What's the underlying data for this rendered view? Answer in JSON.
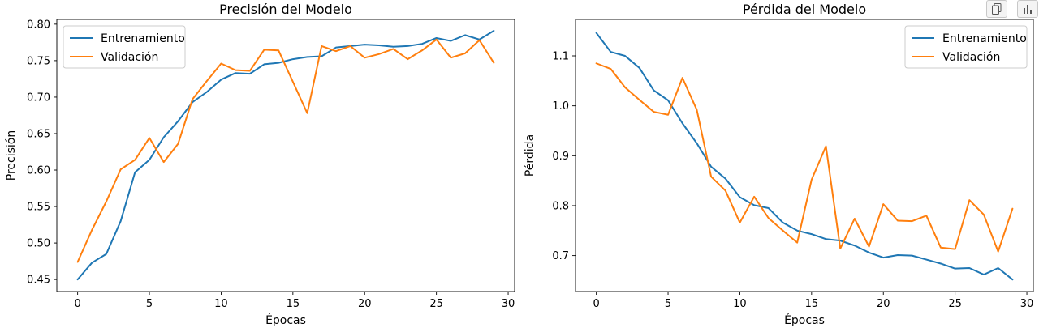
{
  "toolbar": {
    "copy_icon": "copy-icon",
    "chart_icon": "bar-chart-icon"
  },
  "chart_data": [
    {
      "type": "line",
      "title": "Precisión del Modelo",
      "xlabel": "Épocas",
      "ylabel": "Precisión",
      "xlim": [
        -1.45,
        30.45
      ],
      "ylim": [
        0.4335,
        0.8065
      ],
      "xticks": [
        0,
        5,
        10,
        15,
        20,
        25,
        30
      ],
      "yticks": [
        0.45,
        0.5,
        0.55,
        0.6,
        0.65,
        0.7,
        0.75,
        0.8
      ],
      "ytick_labels": [
        "0.45",
        "0.50",
        "0.55",
        "0.60",
        "0.65",
        "0.70",
        "0.75",
        "0.80"
      ],
      "legend_loc": "upper left",
      "x": [
        0,
        1,
        2,
        3,
        4,
        5,
        6,
        7,
        8,
        9,
        10,
        11,
        12,
        13,
        14,
        15,
        16,
        17,
        18,
        19,
        20,
        21,
        22,
        23,
        24,
        25,
        26,
        27,
        28,
        29
      ],
      "series": [
        {
          "name": "Entrenamiento",
          "color": "#1f77b4",
          "values": [
            0.45,
            0.473,
            0.485,
            0.53,
            0.597,
            0.614,
            0.645,
            0.667,
            0.693,
            0.707,
            0.724,
            0.733,
            0.732,
            0.745,
            0.747,
            0.752,
            0.755,
            0.756,
            0.768,
            0.77,
            0.772,
            0.771,
            0.769,
            0.77,
            0.773,
            0.781,
            0.777,
            0.785,
            0.779,
            0.791
          ]
        },
        {
          "name": "Validación",
          "color": "#ff7f0e",
          "values": [
            0.474,
            0.518,
            0.557,
            0.601,
            0.614,
            0.644,
            0.611,
            0.636,
            0.697,
            0.722,
            0.746,
            0.737,
            0.736,
            0.765,
            0.764,
            0.721,
            0.678,
            0.77,
            0.763,
            0.77,
            0.754,
            0.759,
            0.766,
            0.752,
            0.764,
            0.779,
            0.754,
            0.76,
            0.778,
            0.747
          ]
        }
      ]
    },
    {
      "type": "line",
      "title": "Pérdida del Modelo",
      "xlabel": "Épocas",
      "ylabel": "Pérdida",
      "xlim": [
        -1.45,
        30.45
      ],
      "ylim": [
        0.628,
        1.173
      ],
      "xticks": [
        0,
        5,
        10,
        15,
        20,
        25,
        30
      ],
      "yticks": [
        0.7,
        0.8,
        0.9,
        1.0,
        1.1
      ],
      "ytick_labels": [
        "0.7",
        "0.8",
        "0.9",
        "1.0",
        "1.1"
      ],
      "legend_loc": "upper right",
      "x": [
        0,
        1,
        2,
        3,
        4,
        5,
        6,
        7,
        8,
        9,
        10,
        11,
        12,
        13,
        14,
        15,
        16,
        17,
        18,
        19,
        20,
        21,
        22,
        23,
        24,
        25,
        26,
        27,
        28,
        29
      ],
      "series": [
        {
          "name": "Entrenamiento",
          "color": "#1f77b4",
          "values": [
            1.146,
            1.108,
            1.1,
            1.076,
            1.031,
            1.011,
            0.965,
            0.925,
            0.878,
            0.854,
            0.817,
            0.801,
            0.795,
            0.766,
            0.75,
            0.743,
            0.733,
            0.73,
            0.72,
            0.706,
            0.696,
            0.701,
            0.7,
            0.692,
            0.684,
            0.674,
            0.675,
            0.662,
            0.675,
            0.652
          ]
        },
        {
          "name": "Validación",
          "color": "#ff7f0e",
          "values": [
            1.085,
            1.074,
            1.037,
            1.012,
            0.988,
            0.982,
            1.056,
            0.992,
            0.858,
            0.83,
            0.766,
            0.818,
            0.775,
            0.75,
            0.726,
            0.852,
            0.919,
            0.714,
            0.774,
            0.718,
            0.803,
            0.77,
            0.769,
            0.78,
            0.716,
            0.713,
            0.811,
            0.782,
            0.708,
            0.794
          ]
        }
      ]
    }
  ]
}
